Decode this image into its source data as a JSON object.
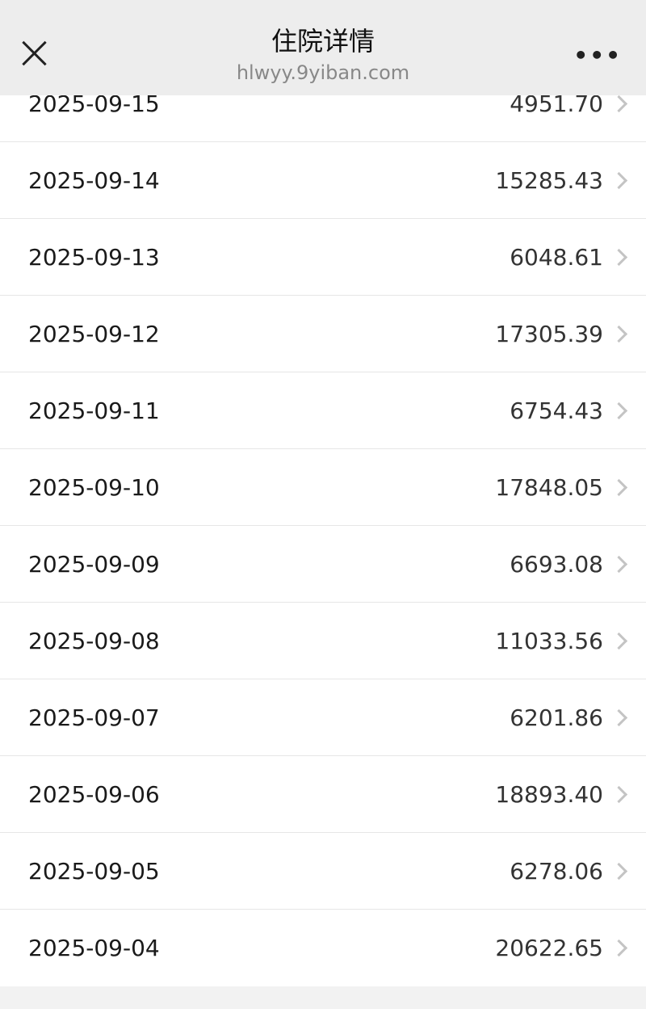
{
  "header": {
    "title": "住院详情",
    "subtitle": "hlwyy.9yiban.com",
    "more": "•••"
  },
  "rows": [
    {
      "date": "2025-09-15",
      "amount": "4951.70"
    },
    {
      "date": "2025-09-14",
      "amount": "15285.43"
    },
    {
      "date": "2025-09-13",
      "amount": "6048.61"
    },
    {
      "date": "2025-09-12",
      "amount": "17305.39"
    },
    {
      "date": "2025-09-11",
      "amount": "6754.43"
    },
    {
      "date": "2025-09-10",
      "amount": "17848.05"
    },
    {
      "date": "2025-09-09",
      "amount": "6693.08"
    },
    {
      "date": "2025-09-08",
      "amount": "11033.56"
    },
    {
      "date": "2025-09-07",
      "amount": "6201.86"
    },
    {
      "date": "2025-09-06",
      "amount": "18893.40"
    },
    {
      "date": "2025-09-05",
      "amount": "6278.06"
    },
    {
      "date": "2025-09-04",
      "amount": "20622.65"
    }
  ]
}
